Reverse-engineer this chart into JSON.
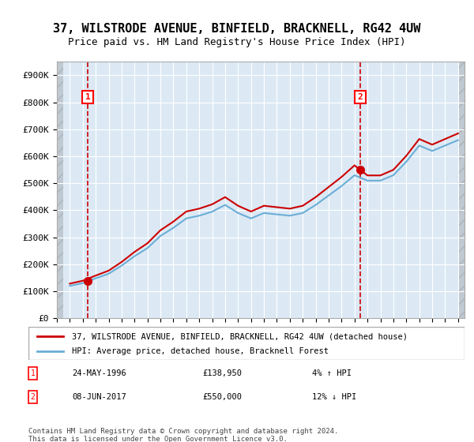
{
  "title": "37, WILSTRODE AVENUE, BINFIELD, BRACKNELL, RG42 4UW",
  "subtitle": "Price paid vs. HM Land Registry's House Price Index (HPI)",
  "ylim": [
    0,
    950000
  ],
  "yticks": [
    0,
    100000,
    200000,
    300000,
    400000,
    500000,
    600000,
    700000,
    800000,
    900000
  ],
  "ytick_labels": [
    "£0",
    "£100K",
    "£200K",
    "£300K",
    "£400K",
    "£500K",
    "£600K",
    "£700K",
    "£800K",
    "£900K"
  ],
  "xlim_start": 1994.0,
  "xlim_end": 2025.5,
  "purchase1_x": 1996.39,
  "purchase1_y": 138950,
  "purchase2_x": 2017.44,
  "purchase2_y": 550000,
  "purchase1_label": "24-MAY-1996",
  "purchase1_price": "£138,950",
  "purchase1_hpi": "4% ↑ HPI",
  "purchase2_label": "08-JUN-2017",
  "purchase2_price": "£550,000",
  "purchase2_hpi": "12% ↓ HPI",
  "line1_label": "37, WILSTRODE AVENUE, BINFIELD, BRACKNELL, RG42 4UW (detached house)",
  "line2_label": "HPI: Average price, detached house, Bracknell Forest",
  "footer": "Contains HM Land Registry data © Crown copyright and database right 2024.\nThis data is licensed under the Open Government Licence v3.0.",
  "hpi_color": "#6baed6",
  "price_color": "#cc0000",
  "bg_color": "#dce9f5",
  "hatch_color": "#c0c8d8",
  "grid_color": "#ffffff",
  "dashed_color": "#cc0000"
}
